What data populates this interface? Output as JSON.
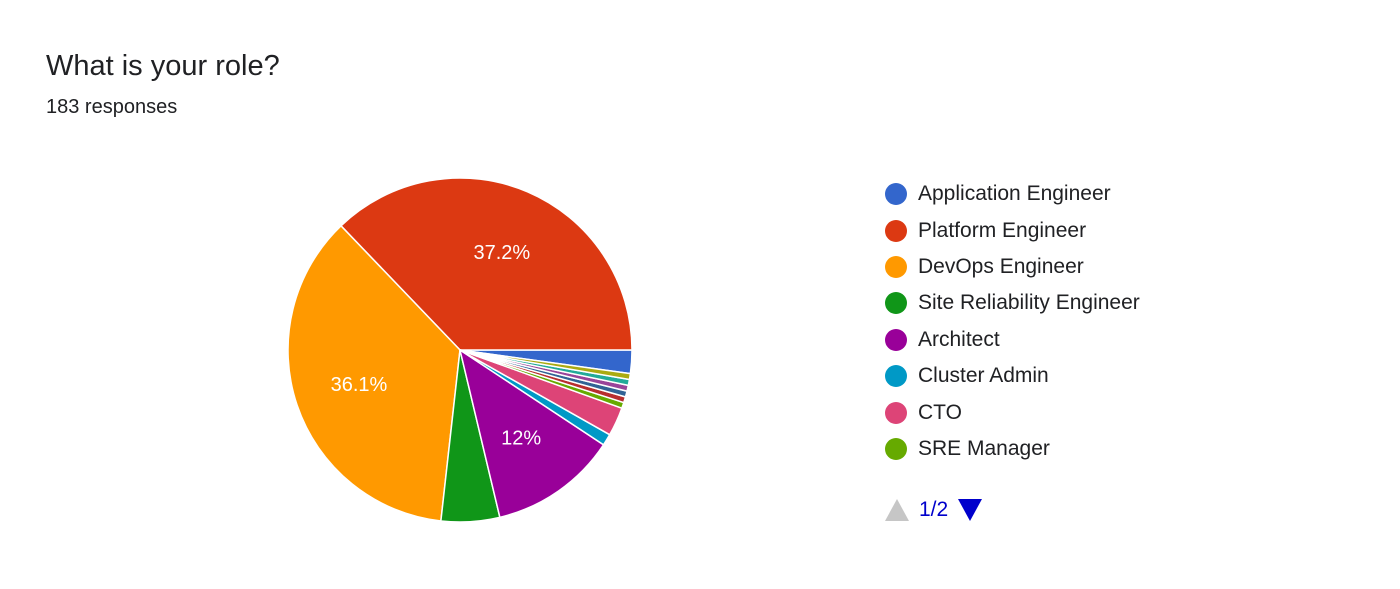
{
  "header": {
    "title": "What is your role?",
    "responses": "183 responses"
  },
  "chart_data": {
    "type": "pie",
    "title": "What is your role?",
    "total_responses": 183,
    "legend_position": "right",
    "slices": [
      {
        "name": "Application Engineer",
        "value": 2.2,
        "color": "#3366cc",
        "label": ""
      },
      {
        "name": "Platform Engineer",
        "value": 37.2,
        "color": "#dc3912",
        "label": "37.2%"
      },
      {
        "name": "DevOps Engineer",
        "value": 36.1,
        "color": "#ff9900",
        "label": "36.1%"
      },
      {
        "name": "Site Reliability Engineer",
        "value": 5.5,
        "color": "#109618",
        "label": ""
      },
      {
        "name": "Architect",
        "value": 12.0,
        "color": "#990099",
        "label": "12%"
      },
      {
        "name": "Cluster Admin",
        "value": 1.1,
        "color": "#0099c6",
        "label": ""
      },
      {
        "name": "CTO",
        "value": 2.7,
        "color": "#dd4477",
        "label": ""
      },
      {
        "name": "SRE Manager",
        "value": 0.55,
        "color": "#66aa00",
        "label": ""
      },
      {
        "name": "",
        "value": 0.55,
        "color": "#b82e2e",
        "label": ""
      },
      {
        "name": "",
        "value": 0.55,
        "color": "#316395",
        "label": ""
      },
      {
        "name": "",
        "value": 0.55,
        "color": "#994499",
        "label": ""
      },
      {
        "name": "",
        "value": 0.55,
        "color": "#22aa99",
        "label": ""
      },
      {
        "name": "",
        "value": 0.55,
        "color": "#aaaa11",
        "label": ""
      }
    ]
  },
  "legend": {
    "items": [
      {
        "label": "Application Engineer",
        "color": "#3366cc"
      },
      {
        "label": "Platform Engineer",
        "color": "#dc3912"
      },
      {
        "label": "DevOps Engineer",
        "color": "#ff9900"
      },
      {
        "label": "Site Reliability Engineer",
        "color": "#109618"
      },
      {
        "label": "Architect",
        "color": "#990099"
      },
      {
        "label": "Cluster Admin",
        "color": "#0099c6"
      },
      {
        "label": "CTO",
        "color": "#dd4477"
      },
      {
        "label": "SRE Manager",
        "color": "#66aa00"
      }
    ]
  },
  "pager": {
    "text": "1/2",
    "prev_icon": "triangle-up-icon",
    "next_icon": "triangle-down-icon"
  }
}
